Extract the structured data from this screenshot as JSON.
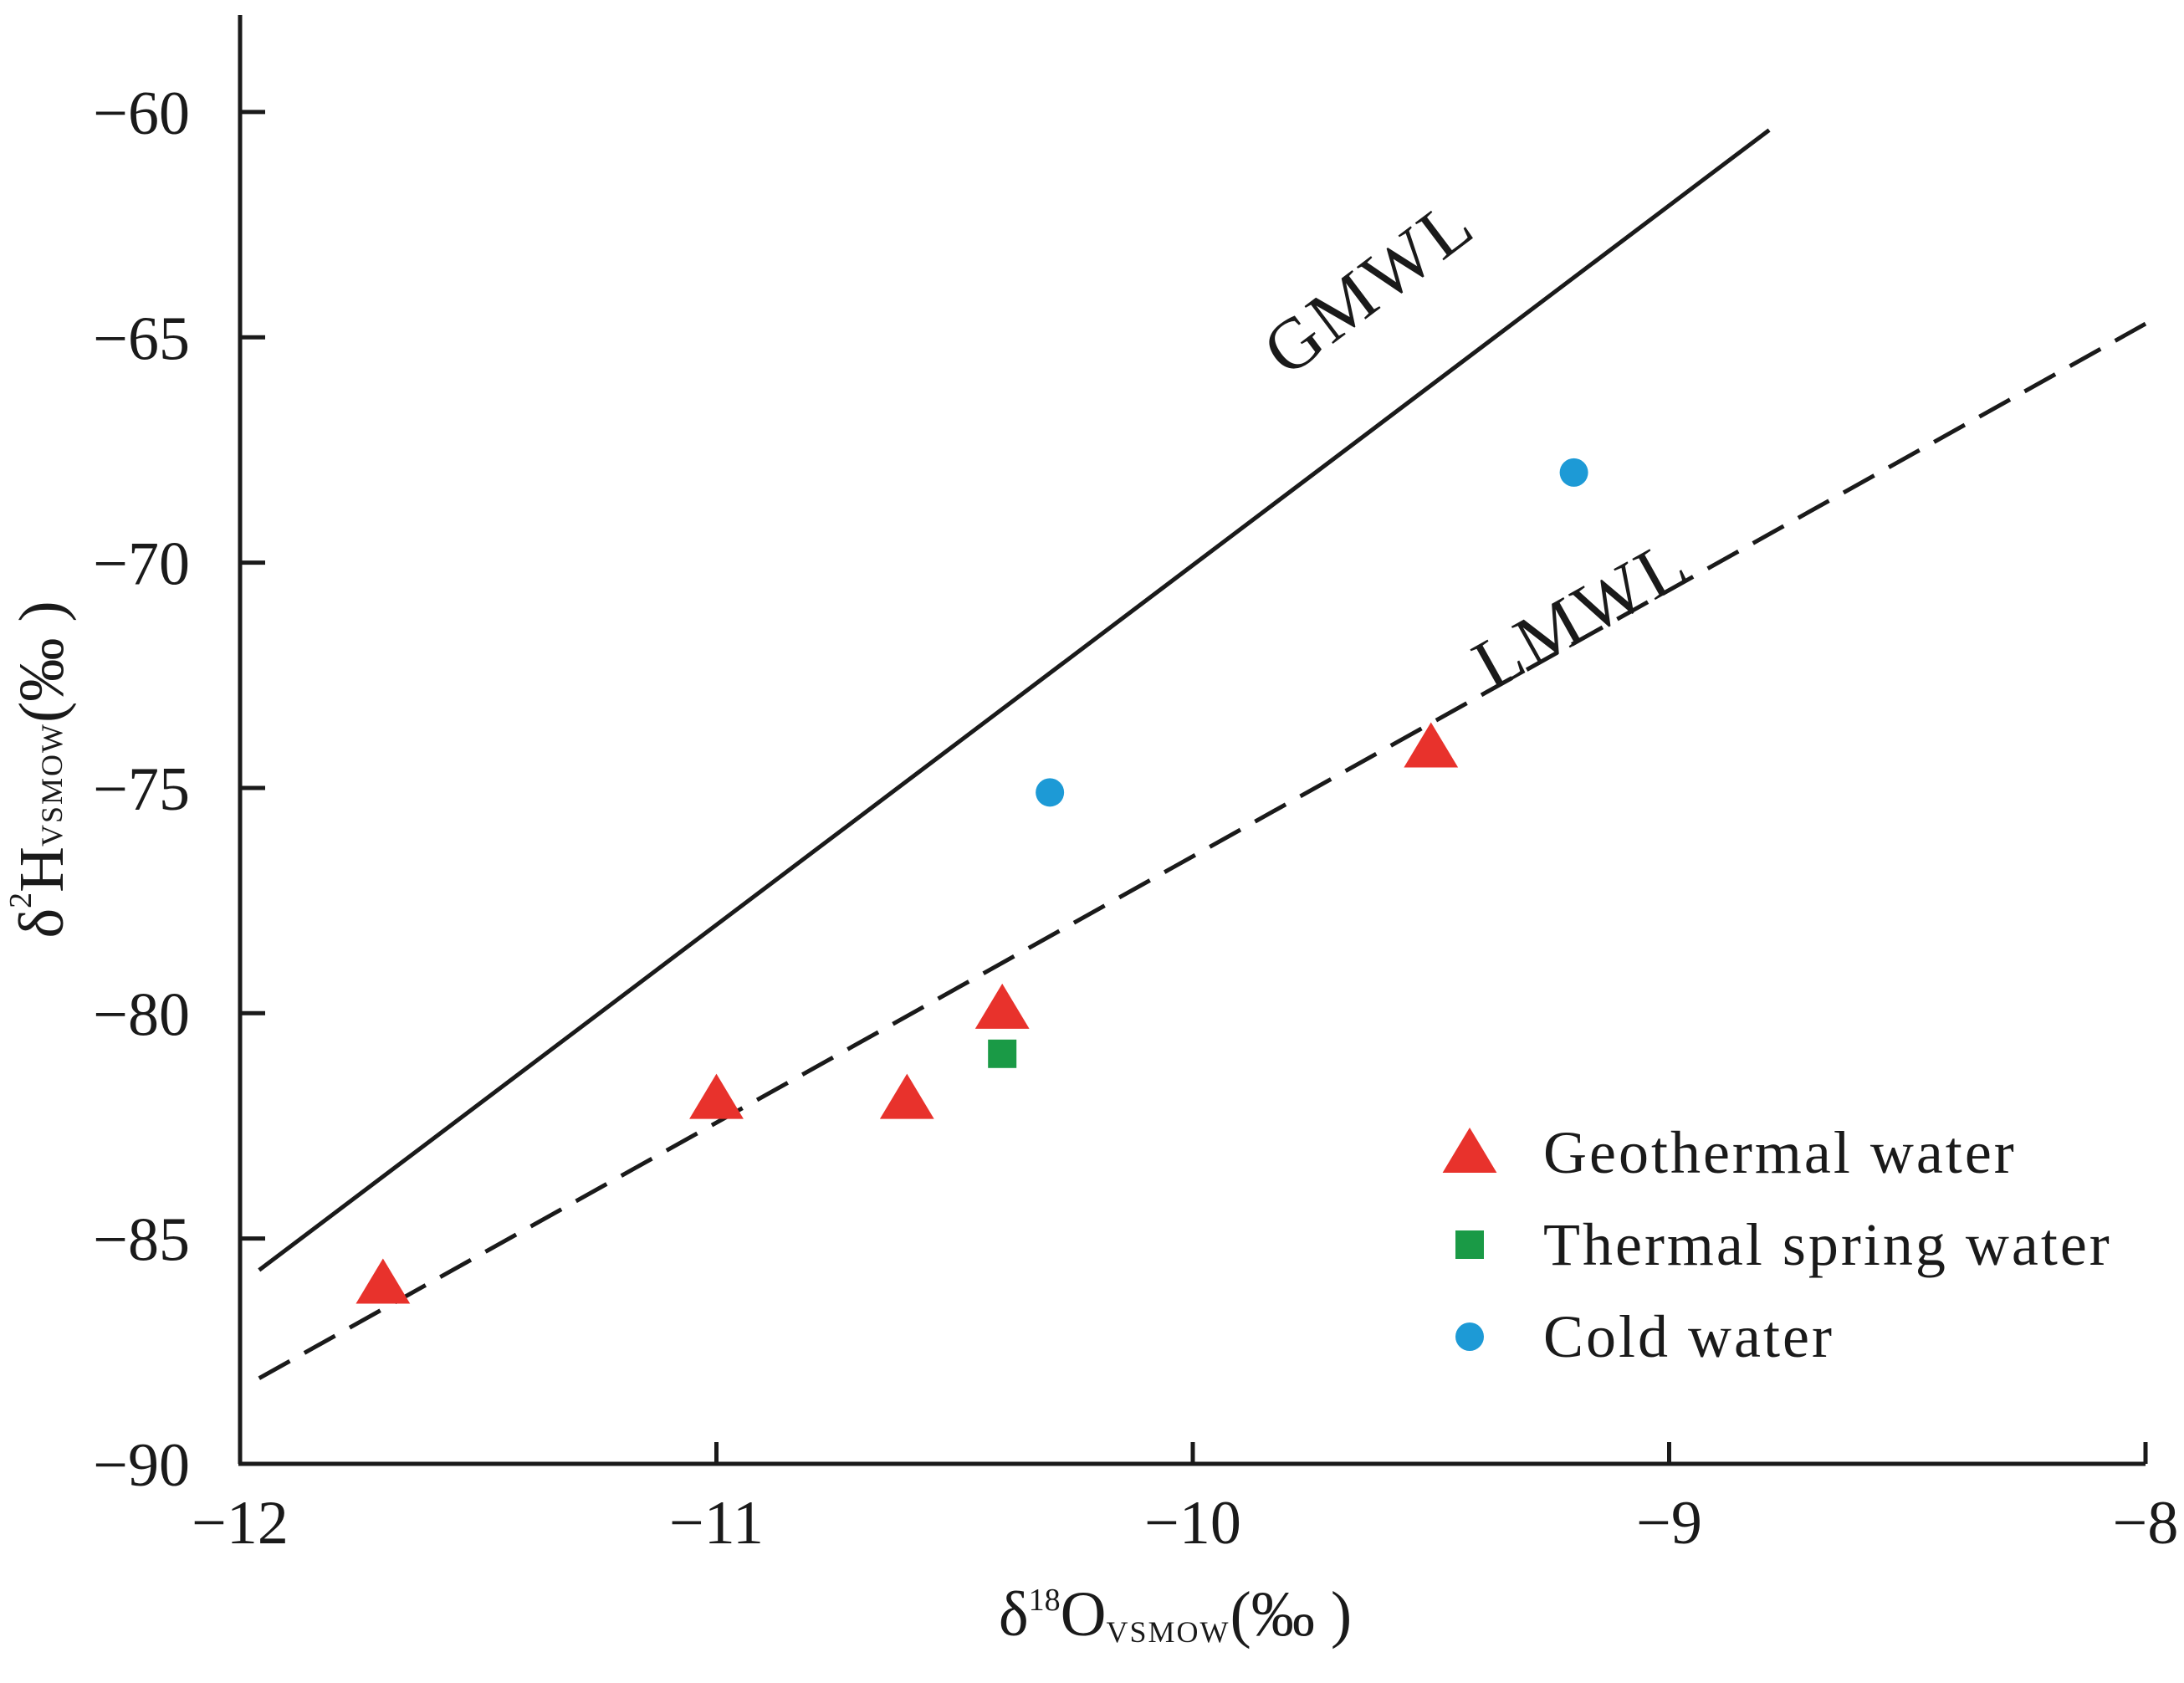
{
  "chart_data": {
    "type": "scatter",
    "title": "",
    "xlabel": {
      "symbol": "δ",
      "sup": "18",
      "main": "O",
      "sub": "VSMOW",
      "unit": "(‰ )"
    },
    "ylabel": {
      "symbol": "δ",
      "sup": "2",
      "main": "H",
      "sub": "VSMOW",
      "unit": "(‰ )"
    },
    "xlim": [
      -12,
      -8
    ],
    "ylim": [
      -90,
      -58
    ],
    "x_ticks": [
      -12,
      -11,
      -10,
      -9,
      -8
    ],
    "x_tick_labels": [
      "−12",
      "−11",
      "−10",
      "−9",
      "−8"
    ],
    "y_ticks": [
      -90,
      -85,
      -80,
      -75,
      -70,
      -65,
      -60
    ],
    "y_tick_labels": [
      "−90",
      "−85",
      "−80",
      "−75",
      "−70",
      "−65",
      "−60"
    ],
    "grid": false,
    "legend_position": "bottom-right",
    "reference_lines": [
      {
        "name": "GMWL",
        "label": "GMWL",
        "style": "solid",
        "color": "#1a1a1a",
        "x": [
          -11.96,
          -8.79
        ],
        "y": [
          -85.7,
          -60.4
        ]
      },
      {
        "name": "LMWL",
        "label": "LMWL",
        "style": "dashed",
        "color": "#1a1a1a",
        "x": [
          -11.96,
          -8.0
        ],
        "y": [
          -88.1,
          -64.7
        ]
      }
    ],
    "series": [
      {
        "name": "Geothermal water",
        "marker": "triangle",
        "color": "#e8322c",
        "points": [
          {
            "x": -11.7,
            "y": -86.0
          },
          {
            "x": -11.0,
            "y": -81.9
          },
          {
            "x": -10.6,
            "y": -81.9
          },
          {
            "x": -10.4,
            "y": -79.9
          },
          {
            "x": -9.5,
            "y": -74.1
          }
        ]
      },
      {
        "name": "Thermal spring water",
        "marker": "square",
        "color": "#1a9a46",
        "points": [
          {
            "x": -10.4,
            "y": -80.9
          }
        ]
      },
      {
        "name": "Cold water",
        "marker": "circle",
        "color": "#1d9ad6",
        "points": [
          {
            "x": -10.3,
            "y": -75.1
          },
          {
            "x": -9.2,
            "y": -68.0
          }
        ]
      }
    ]
  }
}
